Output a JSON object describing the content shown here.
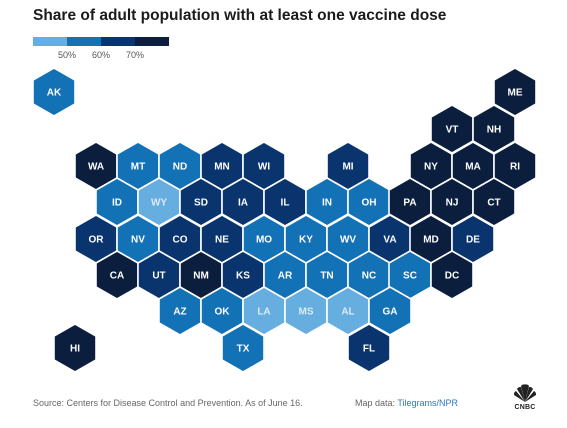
{
  "title": "Share of adult population with at least one vaccine dose",
  "colors": {
    "lt50": "#66aee0",
    "50to60": "#1371b5",
    "60to70": "#09346e",
    "gte70": "#0b1e3d"
  },
  "legend": {
    "ticks": [
      "50%",
      "60%",
      "70%"
    ]
  },
  "chart_data": {
    "type": "hexagon tile map",
    "title": "Share of adult population with at least one vaccine dose",
    "legend_bins": [
      {
        "range": "<50%",
        "color_key": "lt50"
      },
      {
        "range": "50–60%",
        "color_key": "50to60"
      },
      {
        "range": "60–70%",
        "color_key": "60to70"
      },
      {
        "range": "≥70%",
        "color_key": "gte70"
      }
    ],
    "states": [
      {
        "abbr": "AK",
        "bin": "50to60"
      },
      {
        "abbr": "ME",
        "bin": "gte70"
      },
      {
        "abbr": "VT",
        "bin": "gte70"
      },
      {
        "abbr": "NH",
        "bin": "gte70"
      },
      {
        "abbr": "WA",
        "bin": "gte70"
      },
      {
        "abbr": "MT",
        "bin": "50to60"
      },
      {
        "abbr": "ND",
        "bin": "50to60"
      },
      {
        "abbr": "MN",
        "bin": "60to70"
      },
      {
        "abbr": "WI",
        "bin": "60to70"
      },
      {
        "abbr": "MI",
        "bin": "60to70"
      },
      {
        "abbr": "NY",
        "bin": "gte70"
      },
      {
        "abbr": "MA",
        "bin": "gte70"
      },
      {
        "abbr": "RI",
        "bin": "gte70"
      },
      {
        "abbr": "ID",
        "bin": "50to60"
      },
      {
        "abbr": "WY",
        "bin": "lt50"
      },
      {
        "abbr": "SD",
        "bin": "60to70"
      },
      {
        "abbr": "IA",
        "bin": "60to70"
      },
      {
        "abbr": "IL",
        "bin": "60to70"
      },
      {
        "abbr": "IN",
        "bin": "50to60"
      },
      {
        "abbr": "OH",
        "bin": "50to60"
      },
      {
        "abbr": "PA",
        "bin": "gte70"
      },
      {
        "abbr": "NJ",
        "bin": "gte70"
      },
      {
        "abbr": "CT",
        "bin": "gte70"
      },
      {
        "abbr": "OR",
        "bin": "60to70"
      },
      {
        "abbr": "NV",
        "bin": "50to60"
      },
      {
        "abbr": "CO",
        "bin": "60to70"
      },
      {
        "abbr": "NE",
        "bin": "60to70"
      },
      {
        "abbr": "MO",
        "bin": "50to60"
      },
      {
        "abbr": "KY",
        "bin": "50to60"
      },
      {
        "abbr": "WV",
        "bin": "50to60"
      },
      {
        "abbr": "VA",
        "bin": "60to70"
      },
      {
        "abbr": "MD",
        "bin": "gte70"
      },
      {
        "abbr": "DE",
        "bin": "60to70"
      },
      {
        "abbr": "CA",
        "bin": "gte70"
      },
      {
        "abbr": "UT",
        "bin": "60to70"
      },
      {
        "abbr": "NM",
        "bin": "gte70"
      },
      {
        "abbr": "KS",
        "bin": "60to70"
      },
      {
        "abbr": "AR",
        "bin": "50to60"
      },
      {
        "abbr": "TN",
        "bin": "50to60"
      },
      {
        "abbr": "NC",
        "bin": "50to60"
      },
      {
        "abbr": "SC",
        "bin": "50to60"
      },
      {
        "abbr": "DC",
        "bin": "gte70"
      },
      {
        "abbr": "AZ",
        "bin": "50to60"
      },
      {
        "abbr": "OK",
        "bin": "50to60"
      },
      {
        "abbr": "LA",
        "bin": "lt50"
      },
      {
        "abbr": "MS",
        "bin": "lt50"
      },
      {
        "abbr": "AL",
        "bin": "lt50"
      },
      {
        "abbr": "GA",
        "bin": "50to60"
      },
      {
        "abbr": "HI",
        "bin": "gte70"
      },
      {
        "abbr": "TX",
        "bin": "50to60"
      },
      {
        "abbr": "FL",
        "bin": "60to70"
      }
    ]
  },
  "footer": {
    "source": "Source: Centers for Disease Control and Prevention. As of June 16.",
    "map_data_label": "Map data: ",
    "map_data_link": "Tilegrams/NPR"
  },
  "logo": {
    "text": "CNBC",
    "icon": "nbc-peacock-icon"
  }
}
